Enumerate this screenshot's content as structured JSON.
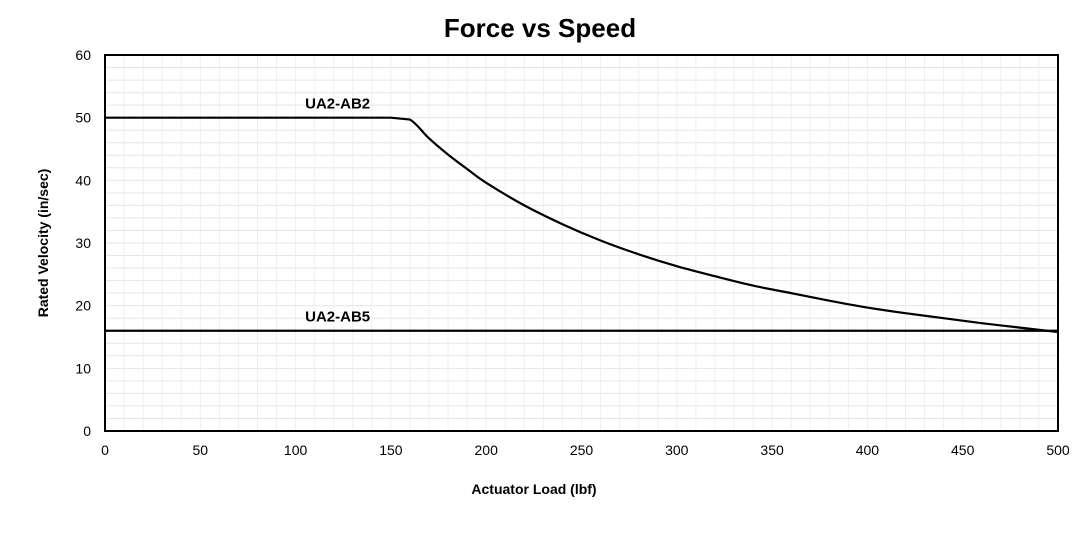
{
  "chart_data": {
    "type": "line",
    "title": "Force vs Speed",
    "xlabel": "Actuator Load (lbf)",
    "ylabel": "Rated Velocity (in/sec)",
    "xlim": [
      0,
      500
    ],
    "ylim": [
      0,
      60
    ],
    "x_ticks": [
      "0",
      "50",
      "100",
      "150",
      "200",
      "250",
      "300",
      "350",
      "400",
      "450",
      "500"
    ],
    "y_ticks": [
      "0",
      "10",
      "20",
      "30",
      "40",
      "50",
      "60"
    ],
    "grid": true,
    "legend": "none",
    "series": [
      {
        "name": "UA2-AB2",
        "color": "#000000",
        "x": [
          0,
          150,
          160,
          170,
          180,
          190,
          200,
          220,
          240,
          260,
          280,
          300,
          320,
          340,
          360,
          380,
          400,
          420,
          440,
          460,
          480,
          500
        ],
        "y": [
          50,
          50,
          49.7,
          46.7,
          44.1,
          41.8,
          39.6,
          36.0,
          33.0,
          30.4,
          28.2,
          26.3,
          24.7,
          23.2,
          22.0,
          20.8,
          19.7,
          18.8,
          18.0,
          17.2,
          16.5,
          15.8
        ]
      },
      {
        "name": "UA2-AB5",
        "color": "#000000",
        "x": [
          0,
          500
        ],
        "y": [
          16,
          16
        ]
      }
    ]
  }
}
